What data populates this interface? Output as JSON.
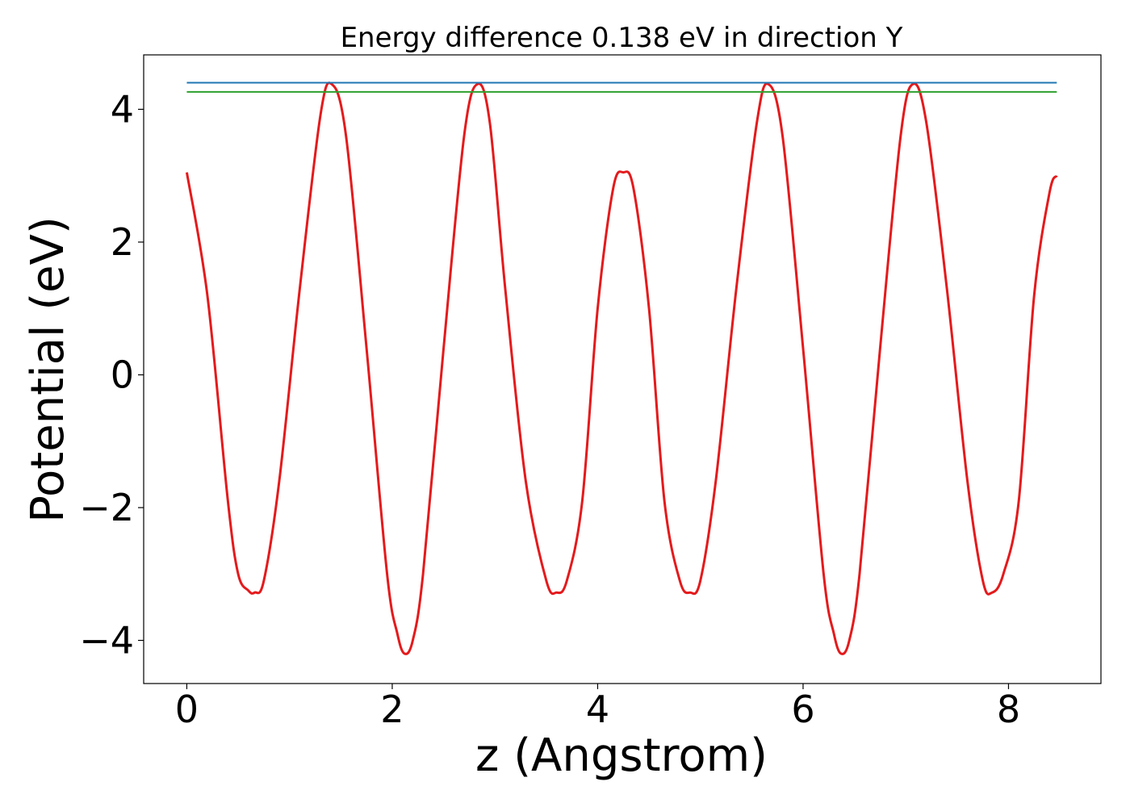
{
  "chart_data": {
    "type": "line",
    "title": "Energy difference 0.138 eV in direction Y",
    "xlabel": "z (Angstrom)",
    "ylabel": "Potential (eV)",
    "xlim": [
      -0.42,
      8.9
    ],
    "ylim": [
      -4.65,
      4.82
    ],
    "xticks": [
      0,
      2,
      4,
      6,
      8
    ],
    "yticks": [
      -4,
      -2,
      0,
      2,
      4
    ],
    "ytick_labels": [
      "−4",
      "−2",
      "0",
      "2",
      "4"
    ],
    "grid": false,
    "series": [
      {
        "color": "#e41a1c",
        "x": [
          0.0,
          0.2,
          0.4,
          0.5,
          0.6,
          0.66,
          0.75,
          0.9,
          1.1,
          1.3,
          1.41,
          1.55,
          1.75,
          1.95,
          2.05,
          2.12,
          2.2,
          2.3,
          2.5,
          2.7,
          2.83,
          2.95,
          3.1,
          3.3,
          3.5,
          3.6,
          3.7,
          3.85,
          4.0,
          4.15,
          4.25,
          4.35,
          4.5,
          4.65,
          4.8,
          4.9,
          5.0,
          5.15,
          5.35,
          5.55,
          5.66,
          5.8,
          6.0,
          6.2,
          6.3,
          6.37,
          6.45,
          6.55,
          6.75,
          6.95,
          7.07,
          7.2,
          7.4,
          7.6,
          7.75,
          7.84,
          7.95,
          8.1,
          8.25,
          8.4,
          8.47
        ],
        "y": [
          3.05,
          1.2,
          -1.9,
          -3.0,
          -3.25,
          -3.28,
          -3.1,
          -1.6,
          1.3,
          3.9,
          4.38,
          3.6,
          0.4,
          -3.0,
          -3.9,
          -4.2,
          -4.0,
          -3.0,
          0.4,
          3.6,
          4.38,
          3.8,
          1.3,
          -1.6,
          -3.1,
          -3.28,
          -3.1,
          -1.9,
          1.0,
          2.8,
          3.05,
          2.8,
          1.0,
          -1.9,
          -3.1,
          -3.28,
          -3.1,
          -1.6,
          1.3,
          3.8,
          4.38,
          3.6,
          0.4,
          -3.0,
          -3.9,
          -4.2,
          -4.0,
          -3.0,
          0.4,
          3.6,
          4.38,
          3.8,
          1.3,
          -1.6,
          -3.1,
          -3.28,
          -3.0,
          -1.9,
          1.2,
          2.75,
          3.0
        ]
      },
      {
        "color": "#1f77b4",
        "x": [
          0.0,
          8.47
        ],
        "y": [
          4.4,
          4.4
        ]
      },
      {
        "color": "#2ca02c",
        "x": [
          0.0,
          8.47
        ],
        "y": [
          4.262,
          4.262
        ]
      }
    ]
  }
}
